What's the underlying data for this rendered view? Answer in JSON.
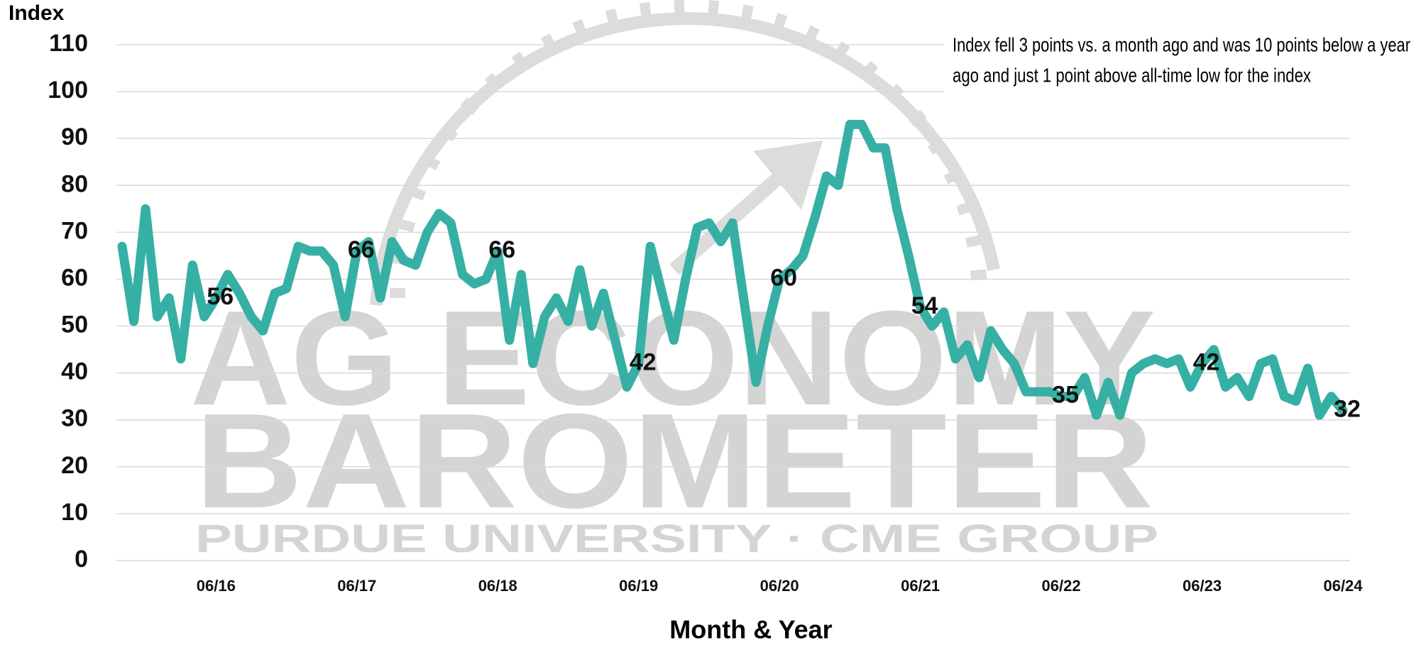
{
  "chart_data": {
    "type": "line",
    "y_axis_label": "Index",
    "x_axis_label": "Month & Year",
    "annotation": [
      "Index fell 3 points vs. a month ago and was 10 points below a year",
      "ago and just 1 point above all-time low for the index"
    ],
    "watermark": [
      "AG ECONOMY",
      "BAROMETER",
      "PURDUE UNIVERSITY · CME GROUP"
    ],
    "x": [
      "10/15",
      "11/15",
      "12/15",
      "01/16",
      "02/16",
      "03/16",
      "04/16",
      "05/16",
      "06/16",
      "07/16",
      "08/16",
      "09/16",
      "10/16",
      "11/16",
      "12/16",
      "01/17",
      "02/17",
      "03/17",
      "04/17",
      "05/17",
      "06/17",
      "07/17",
      "08/17",
      "09/17",
      "10/17",
      "11/17",
      "12/17",
      "01/18",
      "02/18",
      "03/18",
      "04/18",
      "05/18",
      "06/18",
      "07/18",
      "08/18",
      "09/18",
      "10/18",
      "11/18",
      "12/18",
      "01/19",
      "02/19",
      "03/19",
      "04/19",
      "05/19",
      "06/19",
      "07/19",
      "08/19",
      "09/19",
      "10/19",
      "11/19",
      "12/19",
      "01/20",
      "02/20",
      "03/20",
      "04/20",
      "05/20",
      "06/20",
      "07/20",
      "08/20",
      "09/20",
      "10/20",
      "11/20",
      "12/20",
      "01/21",
      "02/21",
      "03/21",
      "04/21",
      "05/21",
      "06/21",
      "07/21",
      "08/21",
      "09/21",
      "10/21",
      "11/21",
      "12/21",
      "01/22",
      "02/22",
      "03/22",
      "04/22",
      "05/22",
      "06/22",
      "07/22",
      "08/22",
      "09/22",
      "10/22",
      "11/22",
      "12/22",
      "01/23",
      "02/23",
      "03/23",
      "04/23",
      "05/23",
      "06/23",
      "07/23",
      "08/23",
      "09/23",
      "10/23",
      "11/23",
      "12/23",
      "01/24",
      "02/24",
      "03/24",
      "04/24",
      "05/24",
      "06/24"
    ],
    "series": [
      {
        "name": "Index",
        "color": "#36b0a4",
        "values": [
          67,
          51,
          75,
          52,
          56,
          43,
          63,
          52,
          56,
          61,
          57,
          52,
          49,
          57,
          58,
          67,
          66,
          66,
          63,
          52,
          66,
          68,
          56,
          68,
          64,
          63,
          70,
          74,
          72,
          61,
          59,
          60,
          66,
          47,
          61,
          42,
          52,
          56,
          51,
          62,
          50,
          57,
          47,
          37,
          42,
          67,
          57,
          47,
          60,
          71,
          72,
          68,
          72,
          55,
          38,
          50,
          60,
          62,
          65,
          73,
          82,
          80,
          93,
          93,
          88,
          88,
          75,
          65,
          54,
          50,
          53,
          43,
          46,
          39,
          49,
          45,
          42,
          36,
          36,
          36,
          35,
          35,
          39,
          31,
          38,
          31,
          40,
          42,
          43,
          42,
          43,
          37,
          42,
          45,
          37,
          39,
          35,
          42,
          43,
          35,
          34,
          41,
          31,
          35,
          32
        ]
      }
    ],
    "xticks": [
      "06/16",
      "06/17",
      "06/18",
      "06/19",
      "06/20",
      "06/21",
      "06/22",
      "06/23",
      "06/24"
    ],
    "ylim": [
      0,
      110
    ],
    "yticks": [
      0,
      10,
      20,
      30,
      40,
      50,
      60,
      70,
      80,
      90,
      100,
      110
    ],
    "grid": true
  }
}
